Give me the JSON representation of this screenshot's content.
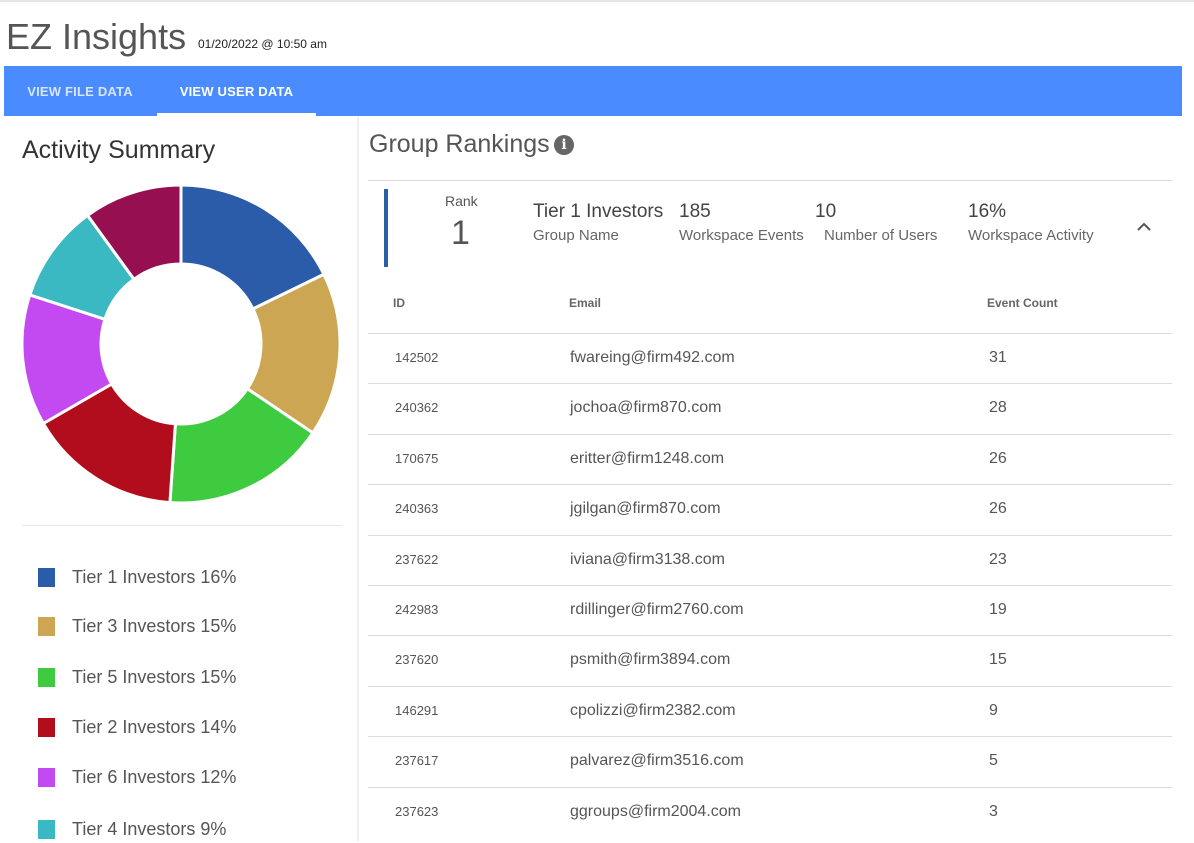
{
  "app": {
    "title": "EZ Insights",
    "timestamp": "01/20/2022 @ 10:50 am"
  },
  "tabs": [
    {
      "label": "VIEW FILE DATA",
      "active": false
    },
    {
      "label": "VIEW USER DATA",
      "active": true
    }
  ],
  "activity_summary": {
    "title": "Activity Summary",
    "chart_data": {
      "type": "pie",
      "donut": true,
      "slices": [
        {
          "label": "Tier 1 Investors",
          "value": 16,
          "color": "#2a5ca9"
        },
        {
          "label": "Tier 3 Investors",
          "value": 15,
          "color": "#cda653"
        },
        {
          "label": "Tier 5 Investors",
          "value": 15,
          "color": "#3fcb3f"
        },
        {
          "label": "Tier 2 Investors",
          "value": 14,
          "color": "#b20d1c"
        },
        {
          "label": "Tier 6 Investors",
          "value": 12,
          "color": "#c34af1"
        },
        {
          "label": "Tier 4 Investors",
          "value": 9,
          "color": "#3bb9c3"
        },
        {
          "label": "",
          "value": 9,
          "color": "#961051"
        }
      ]
    },
    "legend": [
      {
        "label": "Tier 1 Investors 16%",
        "color": "#2a5ca9"
      },
      {
        "label": "Tier 3 Investors 15%",
        "color": "#cda653"
      },
      {
        "label": "Tier 5 Investors 15%",
        "color": "#3fcb3f"
      },
      {
        "label": "Tier 2 Investors 14%",
        "color": "#b20d1c"
      },
      {
        "label": "Tier 6 Investors 12%",
        "color": "#c34af1"
      },
      {
        "label": "Tier 4 Investors 9%",
        "color": "#3bb9c3"
      }
    ]
  },
  "group_rankings": {
    "title": "Group Rankings",
    "info_icon": "info-icon",
    "group": {
      "rank_caption": "Rank",
      "rank": "1",
      "name": "Tier 1 Investors",
      "name_caption": "Group Name",
      "events": "185",
      "events_caption": "Workspace Events",
      "users": "10",
      "users_caption": "Number of Users",
      "activity": "16%",
      "activity_caption": "Workspace Activity",
      "accent_color": "#2a5fa8"
    },
    "table": {
      "headers": {
        "id": "ID",
        "email": "Email",
        "count": "Event Count"
      },
      "rows": [
        {
          "id": "142502",
          "email": "fwareing@firm492.com",
          "count": "31"
        },
        {
          "id": "240362",
          "email": "jochoa@firm870.com",
          "count": "28"
        },
        {
          "id": "170675",
          "email": "eritter@firm1248.com",
          "count": "26"
        },
        {
          "id": "240363",
          "email": "jgilgan@firm870.com",
          "count": "26"
        },
        {
          "id": "237622",
          "email": "iviana@firm3138.com",
          "count": "23"
        },
        {
          "id": "242983",
          "email": "rdillinger@firm2760.com",
          "count": "19"
        },
        {
          "id": "237620",
          "email": "psmith@firm3894.com",
          "count": "15"
        },
        {
          "id": "146291",
          "email": "cpolizzi@firm2382.com",
          "count": "9"
        },
        {
          "id": "237617",
          "email": "palvarez@firm3516.com",
          "count": "5"
        },
        {
          "id": "237623",
          "email": "ggroups@firm2004.com",
          "count": "3"
        }
      ]
    }
  },
  "colors": {
    "tabbar": "#4a8cff",
    "accent": "#2a5fa8"
  }
}
